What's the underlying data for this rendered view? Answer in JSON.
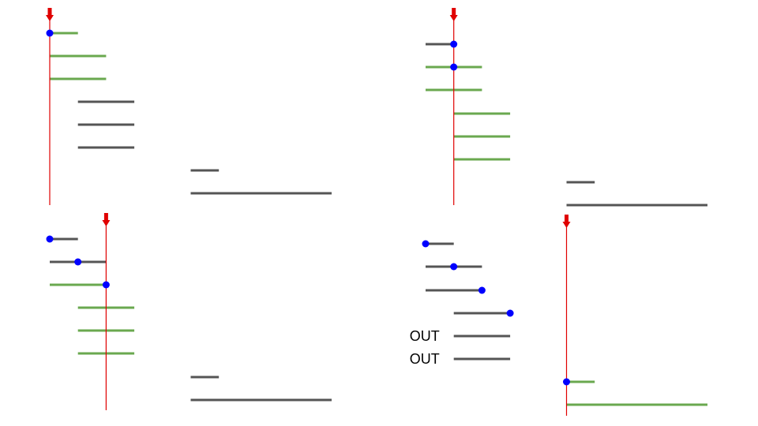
{
  "colors": {
    "active": "#6aa84f",
    "inactive": "#555555",
    "sweep": "#e00000",
    "marker": "#0000ff",
    "background": "#ffffff"
  },
  "panels": [
    {
      "id": "panel-1",
      "sweep_x": 0,
      "intervals": [
        {
          "start": 0,
          "end": 1,
          "state": "active",
          "marker": "start"
        },
        {
          "start": 0,
          "end": 2,
          "state": "active"
        },
        {
          "start": 0,
          "end": 2,
          "state": "active"
        },
        {
          "start": 1,
          "end": 3,
          "state": "inactive"
        },
        {
          "start": 1,
          "end": 3,
          "state": "inactive"
        },
        {
          "start": 1,
          "end": 3,
          "state": "inactive"
        },
        {
          "start": 5,
          "end": 6,
          "state": "inactive"
        },
        {
          "start": 5,
          "end": 10,
          "state": "inactive"
        }
      ]
    },
    {
      "id": "panel-2",
      "sweep_x": 1,
      "intervals": [
        {
          "start": 0,
          "end": 1,
          "state": "inactive",
          "marker": "end"
        },
        {
          "start": 0,
          "end": 2,
          "state": "active",
          "marker": "sweep"
        },
        {
          "start": 0,
          "end": 2,
          "state": "active"
        },
        {
          "start": 1,
          "end": 3,
          "state": "active"
        },
        {
          "start": 1,
          "end": 3,
          "state": "active"
        },
        {
          "start": 1,
          "end": 3,
          "state": "active"
        },
        {
          "start": 5,
          "end": 6,
          "state": "inactive"
        },
        {
          "start": 5,
          "end": 10,
          "state": "inactive"
        }
      ]
    },
    {
      "id": "panel-3",
      "sweep_x": 2,
      "intervals": [
        {
          "start": 0,
          "end": 1,
          "state": "inactive",
          "marker": "start"
        },
        {
          "start": 0,
          "end": 2,
          "state": "inactive",
          "marker": "mid"
        },
        {
          "start": 0,
          "end": 2,
          "state": "active",
          "marker": "end"
        },
        {
          "start": 1,
          "end": 3,
          "state": "active"
        },
        {
          "start": 1,
          "end": 3,
          "state": "active"
        },
        {
          "start": 1,
          "end": 3,
          "state": "active"
        },
        {
          "start": 5,
          "end": 6,
          "state": "inactive"
        },
        {
          "start": 5,
          "end": 10,
          "state": "inactive"
        }
      ]
    },
    {
      "id": "panel-4",
      "sweep_x": 5,
      "intervals": [
        {
          "start": 0,
          "end": 1,
          "state": "inactive",
          "marker": "start"
        },
        {
          "start": 0,
          "end": 2,
          "state": "inactive",
          "marker": "mid"
        },
        {
          "start": 0,
          "end": 2,
          "state": "inactive",
          "marker": "end"
        },
        {
          "start": 1,
          "end": 3,
          "state": "inactive",
          "marker": "end"
        },
        {
          "start": 1,
          "end": 3,
          "state": "inactive",
          "label": "OUT"
        },
        {
          "start": 1,
          "end": 3,
          "state": "inactive",
          "label": "OUT"
        },
        {
          "start": 5,
          "end": 6,
          "state": "active",
          "marker": "start"
        },
        {
          "start": 5,
          "end": 10,
          "state": "active"
        }
      ]
    }
  ]
}
